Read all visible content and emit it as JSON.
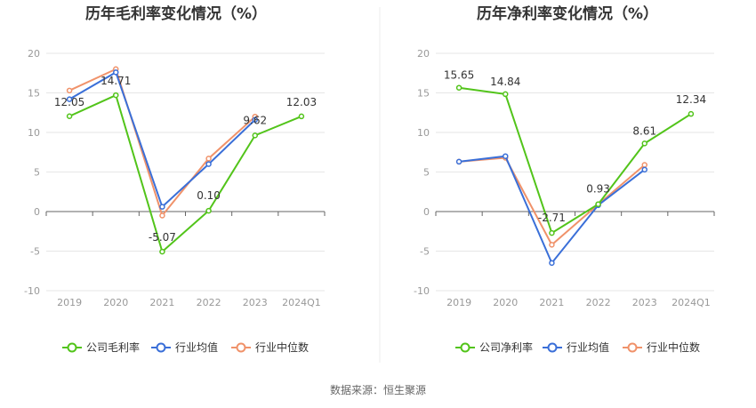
{
  "colors": {
    "company": "#52c41a",
    "industry_avg": "#3a6fd8",
    "industry_median": "#f0926a"
  },
  "source_text": "数据来源：恒生聚源",
  "chart_data": [
    {
      "type": "line",
      "title": "历年毛利率变化情况（%）",
      "categories": [
        "2019",
        "2020",
        "2021",
        "2022",
        "2023",
        "2024Q1"
      ],
      "ylim": [
        -10,
        20
      ],
      "yticks": [
        20,
        15,
        10,
        5,
        0,
        -5,
        -10
      ],
      "grid": true,
      "legend_position": "bottom",
      "series": [
        {
          "name": "公司毛利率",
          "key": "company",
          "values": [
            12.05,
            14.71,
            -5.07,
            0.1,
            9.62,
            12.03
          ],
          "labels": [
            "12.05",
            "14.71",
            "-5.07",
            "0.10",
            "9.62",
            "12.03"
          ]
        },
        {
          "name": "行业均值",
          "key": "industry_avg",
          "values": [
            14.2,
            17.6,
            0.6,
            6.0,
            11.6,
            null
          ]
        },
        {
          "name": "行业中位数",
          "key": "industry_median",
          "values": [
            15.3,
            18.0,
            -0.5,
            6.7,
            12.0,
            null
          ]
        }
      ]
    },
    {
      "type": "line",
      "title": "历年净利率变化情况（%）",
      "categories": [
        "2019",
        "2020",
        "2021",
        "2022",
        "2023",
        "2024Q1"
      ],
      "ylim": [
        -10,
        20
      ],
      "yticks": [
        20,
        15,
        10,
        5,
        0,
        -5,
        -10
      ],
      "grid": true,
      "legend_position": "bottom",
      "series": [
        {
          "name": "公司净利率",
          "key": "company",
          "values": [
            15.65,
            14.84,
            -2.71,
            0.93,
            8.61,
            12.34
          ],
          "labels": [
            "15.65",
            "14.84",
            "-2.71",
            "0.93",
            "8.61",
            "12.34"
          ]
        },
        {
          "name": "行业均值",
          "key": "industry_avg",
          "values": [
            6.3,
            7.0,
            -6.5,
            0.8,
            5.3,
            null
          ]
        },
        {
          "name": "行业中位数",
          "key": "industry_median",
          "values": [
            6.3,
            6.8,
            -4.2,
            0.9,
            5.9,
            null
          ]
        }
      ]
    }
  ]
}
